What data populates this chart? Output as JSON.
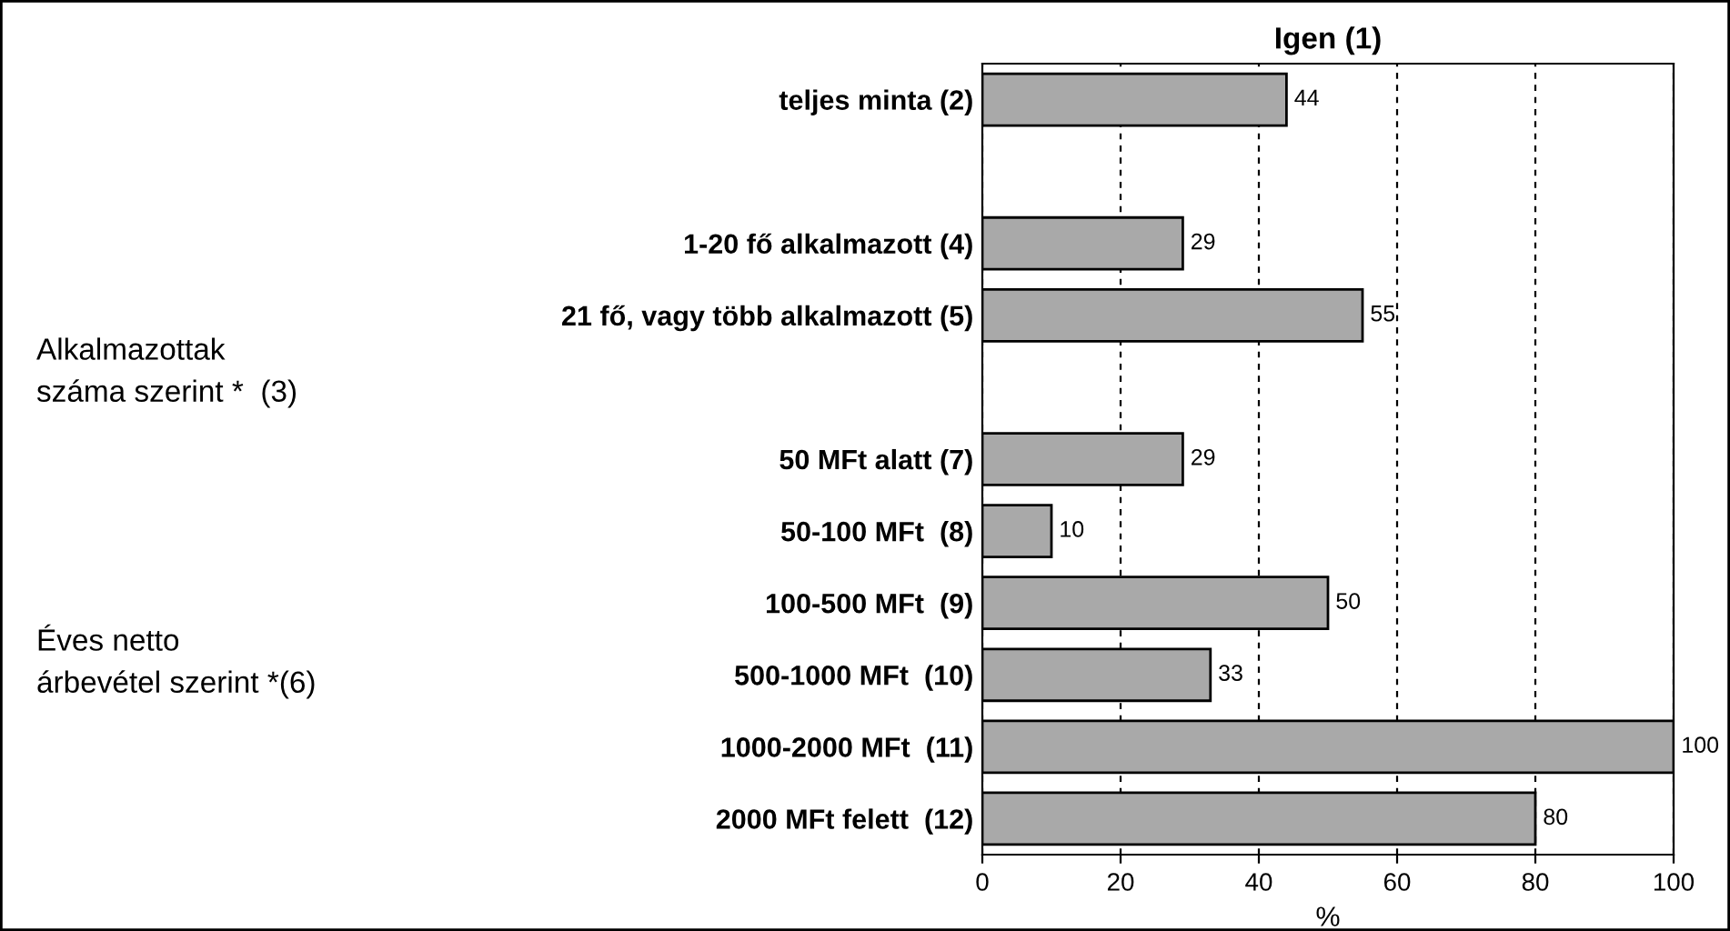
{
  "chart_data": {
    "type": "bar",
    "orientation": "horizontal",
    "title": "Igen (1)",
    "xlabel": "%",
    "categories": [
      "teljes minta (2)",
      null,
      "1-20 fő alkalmazott (4)",
      "21 fő, vagy több alkalmazott (5)",
      null,
      "50 MFt alatt (7)",
      "50-100 MFt  (8)",
      "100-500 MFt  (9)",
      "500-1000 MFt  (10)",
      "1000-2000 MFt  (11)",
      "2000 MFt felett  (12)"
    ],
    "values": [
      44,
      null,
      29,
      55,
      null,
      29,
      10,
      50,
      33,
      100,
      80
    ],
    "color": "#a9a9a9",
    "data_labels": true,
    "xlim": [
      0,
      100
    ],
    "xticks": [
      0,
      20,
      40,
      60,
      80,
      100
    ],
    "grid": "x",
    "legend": false,
    "annotations": [
      "Alkalmazottak\nszáma szerint *  (3)",
      "Éves netto\nárbevétel szerint *(6)"
    ]
  }
}
